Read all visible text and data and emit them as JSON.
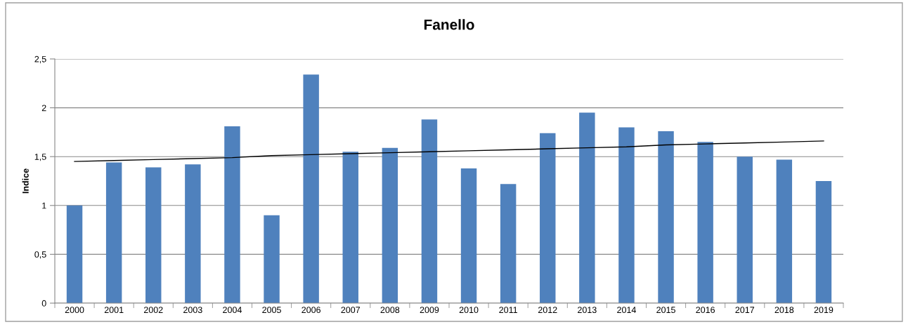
{
  "chart_data": {
    "type": "bar",
    "title": "Fanello",
    "ylabel": "Indice",
    "categories": [
      "2000",
      "2001",
      "2002",
      "2003",
      "2004",
      "2005",
      "2006",
      "2007",
      "2008",
      "2009",
      "2010",
      "2011",
      "2012",
      "2013",
      "2014",
      "2015",
      "2016",
      "2017",
      "2018",
      "2019"
    ],
    "series": [
      {
        "color": "#4f81bd",
        "values": [
          1.0,
          1.44,
          1.39,
          1.42,
          1.81,
          0.9,
          2.34,
          1.55,
          1.59,
          1.88,
          1.38,
          1.22,
          1.74,
          1.95,
          1.8,
          1.76,
          1.65,
          1.5,
          1.47,
          1.25
        ]
      },
      {
        "type": "line",
        "color": "#000000",
        "values": [
          1.45,
          1.46,
          1.47,
          1.48,
          1.49,
          1.51,
          1.52,
          1.53,
          1.54,
          1.55,
          1.56,
          1.57,
          1.58,
          1.59,
          1.6,
          1.62,
          1.63,
          1.64,
          1.65,
          1.66
        ]
      }
    ],
    "ylim": [
      0,
      2.5
    ],
    "yticks": [
      0,
      {
        "value": 0.5,
        "label": "0,5"
      },
      1,
      {
        "value": 1.5,
        "label": "1,5"
      },
      2,
      {
        "value": 2.5,
        "label": "2,5"
      }
    ],
    "grid": "y",
    "legend": false
  }
}
